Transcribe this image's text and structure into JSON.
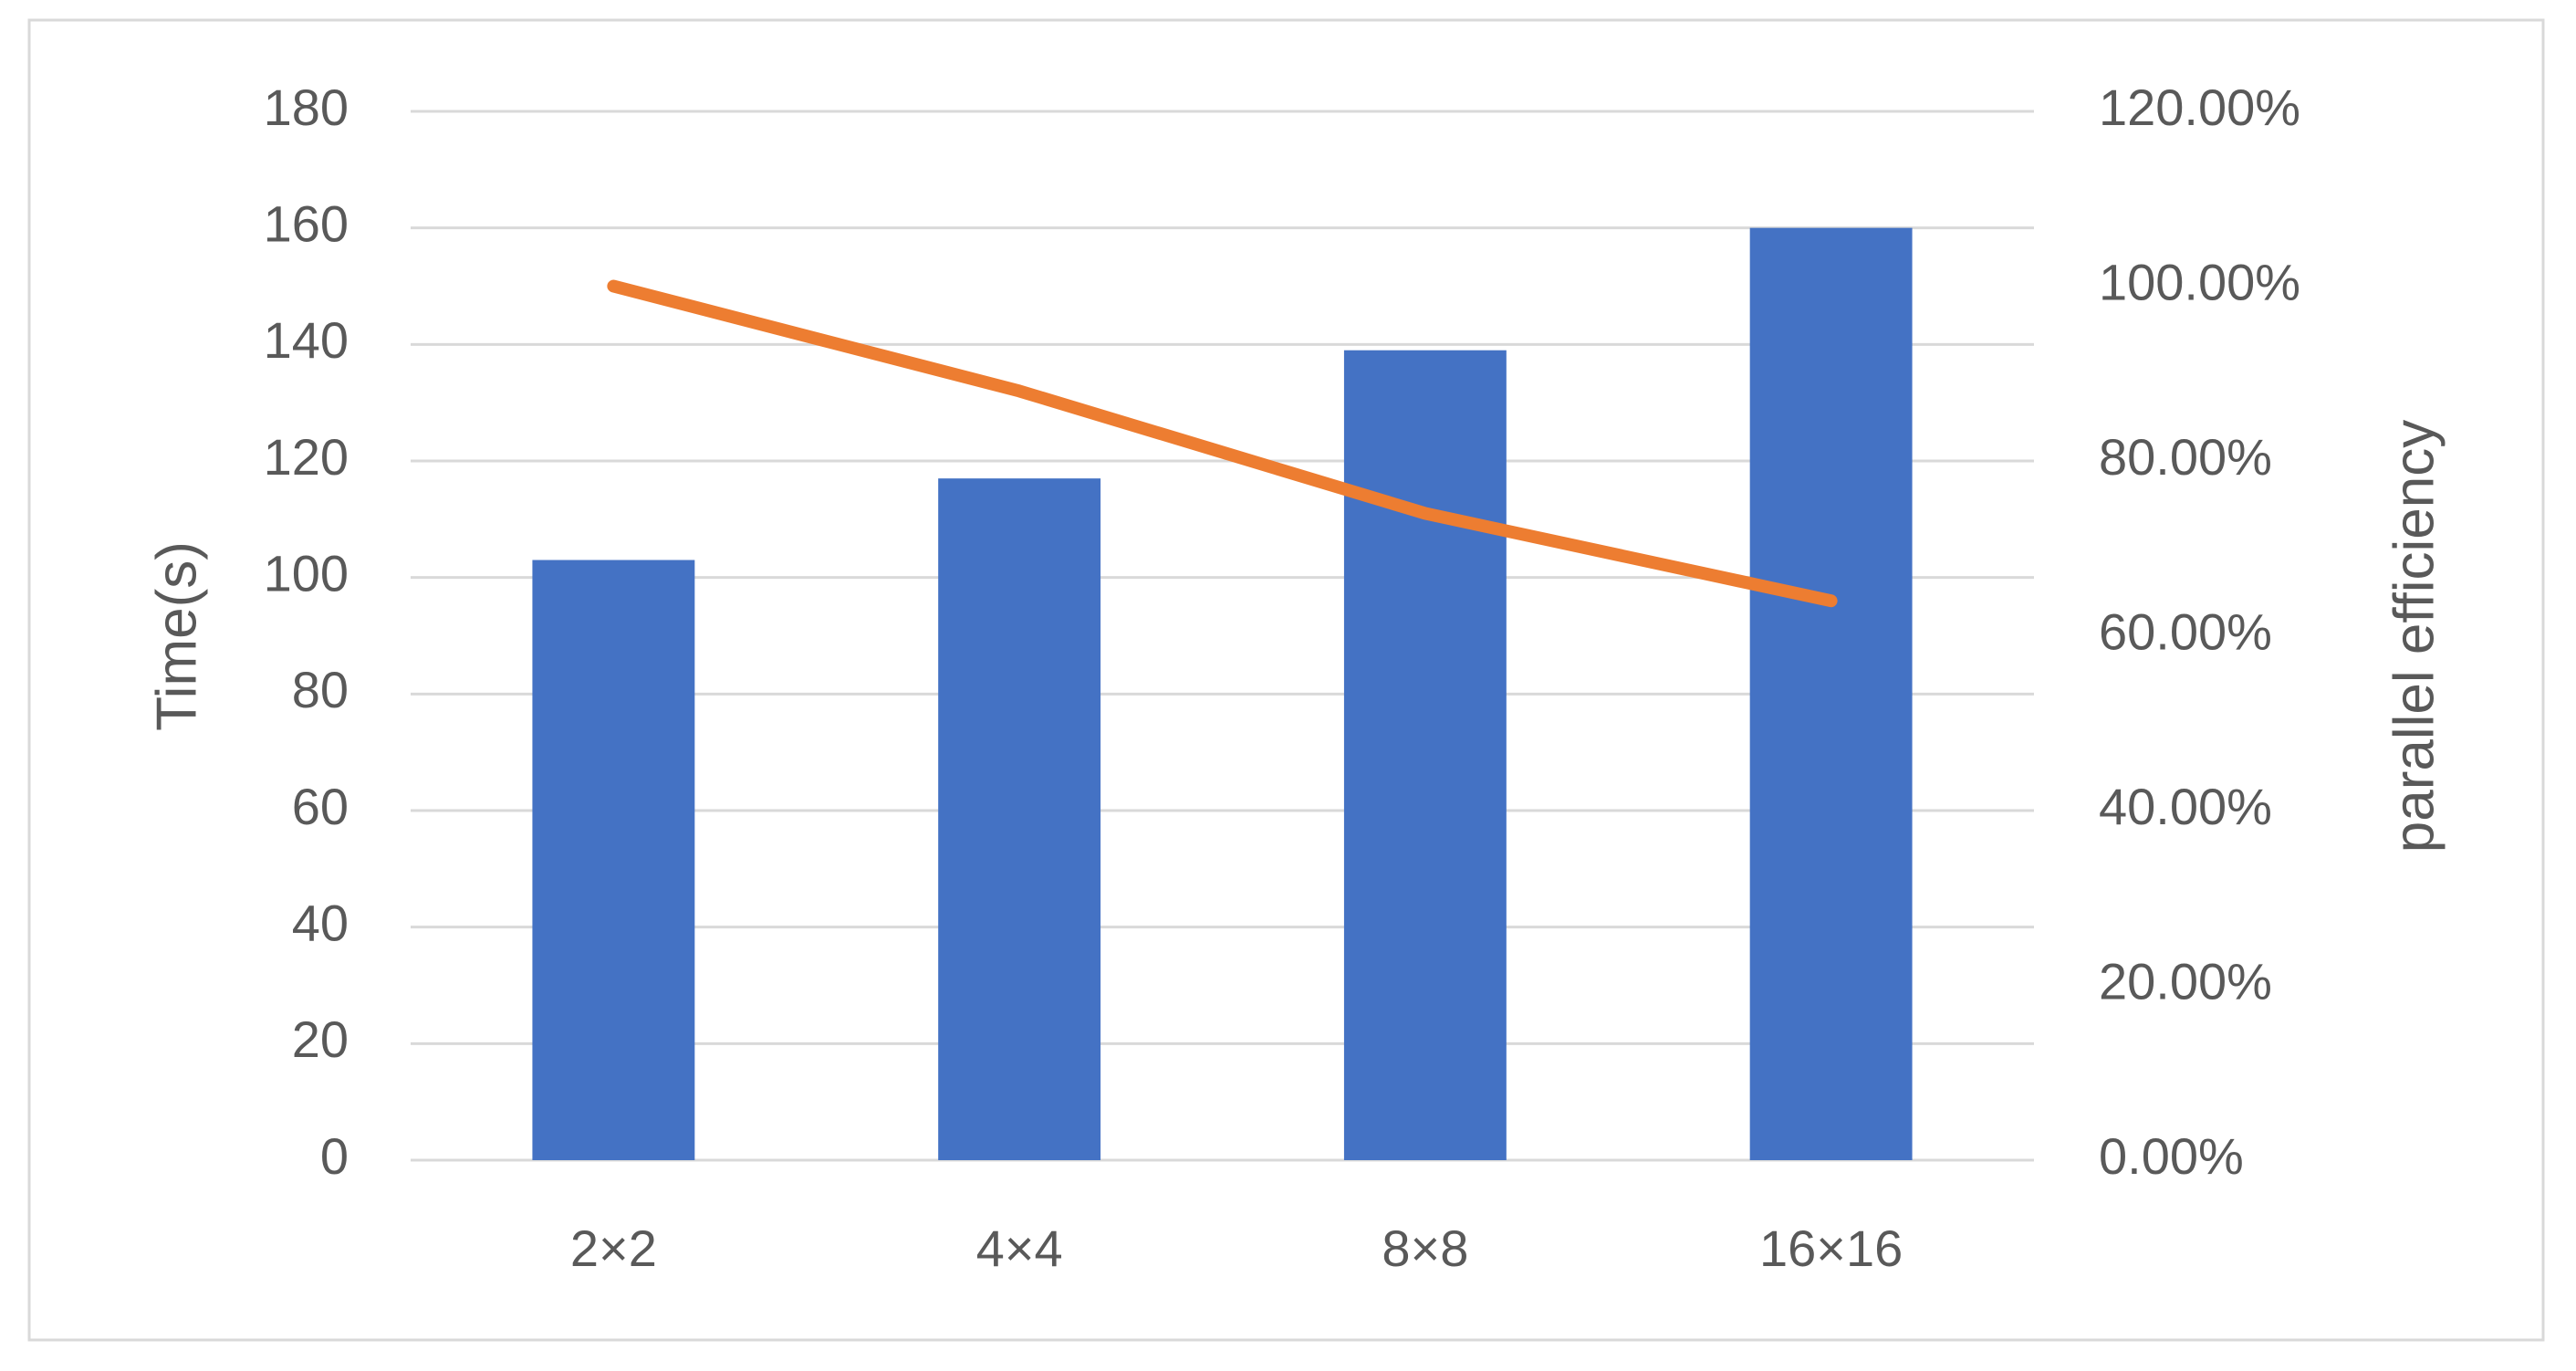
{
  "chart_data": {
    "type": "bar-line",
    "categories": [
      "2×2",
      "4×4",
      "8×8",
      "16×16"
    ],
    "y_label": "Time(s)",
    "y2_label": "parallel efficiency",
    "series": [
      {
        "type": "bar",
        "color": "#4472c4",
        "values": [
          103,
          117,
          139,
          160
        ]
      },
      {
        "type": "line",
        "axis": "y2",
        "color": "#ed7d31",
        "values": [
          100,
          88,
          74,
          64
        ]
      }
    ],
    "ylim": [
      0,
      180
    ],
    "yticks": [
      0,
      20,
      40,
      60,
      80,
      100,
      120,
      140,
      160,
      180
    ],
    "y2lim": [
      0,
      120
    ],
    "y2ticks": [
      {
        "value": 0,
        "label": "0.00%"
      },
      {
        "value": 20,
        "label": "20.00%"
      },
      {
        "value": 40,
        "label": "40.00%"
      },
      {
        "value": 60,
        "label": "60.00%"
      },
      {
        "value": 80,
        "label": "80.00%"
      },
      {
        "value": 100,
        "label": "100.00%"
      },
      {
        "value": 120,
        "label": "120.00%"
      }
    ],
    "grid": true
  }
}
